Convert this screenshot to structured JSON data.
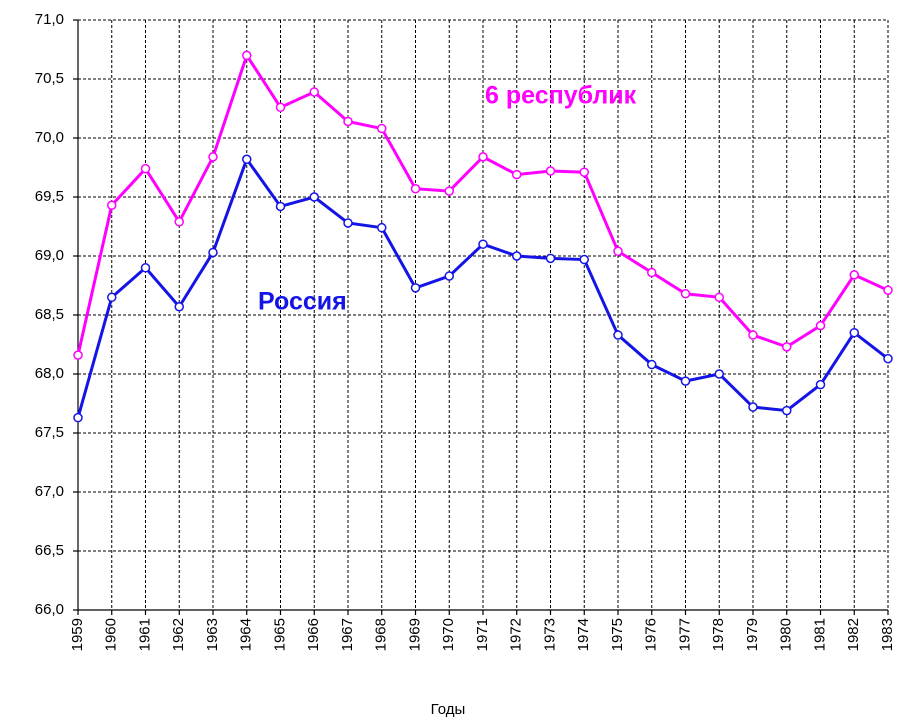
{
  "chart_data": {
    "type": "line",
    "x_label": "Годы",
    "categories": [
      "1959",
      "1960",
      "1961",
      "1962",
      "1963",
      "1964",
      "1965",
      "1966",
      "1967",
      "1968",
      "1969",
      "1970",
      "1971",
      "1972",
      "1973",
      "1974",
      "1975",
      "1976",
      "1977",
      "1978",
      "1979",
      "1980",
      "1981",
      "1982",
      "1983"
    ],
    "series": [
      {
        "name": "6 республик",
        "color": "#ff00ff",
        "values": [
          68.16,
          69.43,
          69.74,
          69.29,
          69.84,
          70.7,
          70.26,
          70.39,
          70.14,
          70.08,
          69.57,
          69.55,
          69.84,
          69.69,
          69.72,
          69.71,
          69.04,
          68.86,
          68.68,
          68.65,
          68.33,
          68.23,
          68.41,
          68.84,
          68.71
        ]
      },
      {
        "name": "Россия",
        "color": "#1414e6",
        "values": [
          67.63,
          68.65,
          68.9,
          68.57,
          69.03,
          69.82,
          69.42,
          69.5,
          69.28,
          69.24,
          68.73,
          68.83,
          69.1,
          69.0,
          68.98,
          68.97,
          68.33,
          68.08,
          67.94,
          68.0,
          67.72,
          67.69,
          67.91,
          68.35,
          68.13
        ]
      }
    ],
    "ylim": [
      66,
      71
    ],
    "yticks": [
      {
        "value": 66,
        "label": "66,0"
      },
      {
        "value": 66.5,
        "label": "66,5"
      },
      {
        "value": 67,
        "label": "67,0"
      },
      {
        "value": 67.5,
        "label": "67,5"
      },
      {
        "value": 68,
        "label": "68,0"
      },
      {
        "value": 68.5,
        "label": "68,5"
      },
      {
        "value": 69,
        "label": "69,0"
      },
      {
        "value": 69.5,
        "label": "69,5"
      },
      {
        "value": 70,
        "label": "70,0"
      },
      {
        "value": 70.5,
        "label": "70,5"
      },
      {
        "value": 71,
        "label": "71,0"
      }
    ],
    "grid": true
  }
}
